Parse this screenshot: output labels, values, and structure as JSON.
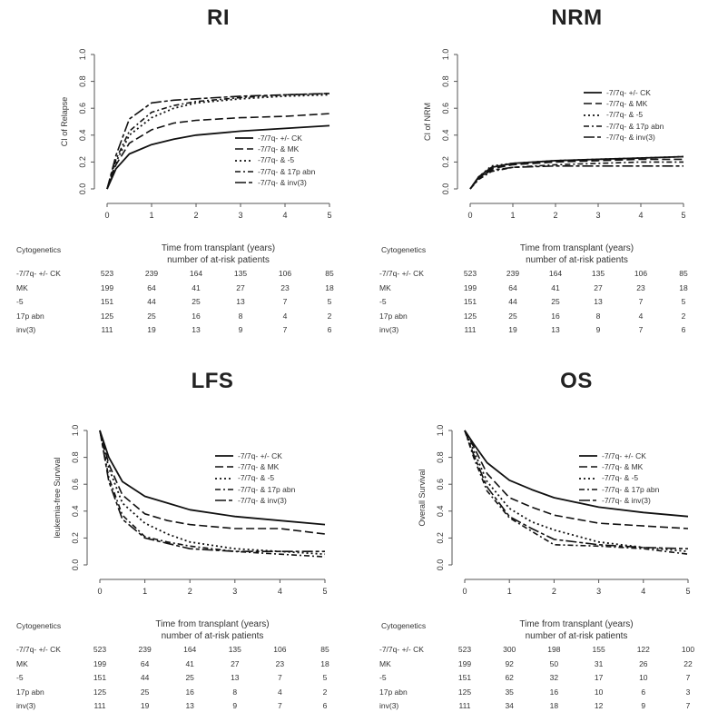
{
  "chart_data": [
    {
      "type": "line",
      "title": "RI",
      "ylabel": "CI of Relapse",
      "xlabel": "Time from transplant (years)",
      "ylim": [
        0,
        1
      ],
      "xlim": [
        0,
        5
      ],
      "yticks": [
        "0.0",
        "0.2",
        "0.4",
        "0.6",
        "0.8",
        "1.0"
      ],
      "xticks": [
        "0",
        "1",
        "2",
        "3",
        "4",
        "5"
      ],
      "legend": [
        "-7/7q- +/- CK",
        "-7/7q- & MK",
        "-7/7q- & -5",
        "-7/7q- & 17p abn",
        "-7/7q- & inv(3)"
      ],
      "legend_position": "bottom-right",
      "series": [
        {
          "name": "-7/7q- +/- CK",
          "dash": "solid",
          "x": [
            0,
            0.2,
            0.5,
            1,
            1.5,
            2,
            3,
            4,
            5
          ],
          "y": [
            0,
            0.15,
            0.26,
            0.33,
            0.37,
            0.4,
            0.43,
            0.45,
            0.47
          ]
        },
        {
          "name": "-7/7q- & MK",
          "dash": "longdash",
          "x": [
            0,
            0.2,
            0.5,
            1,
            1.5,
            2,
            3,
            4,
            5
          ],
          "y": [
            0,
            0.18,
            0.34,
            0.44,
            0.49,
            0.51,
            0.53,
            0.54,
            0.56
          ]
        },
        {
          "name": "-7/7q- & -5",
          "dash": "dotted",
          "x": [
            0,
            0.2,
            0.5,
            1,
            1.5,
            2,
            3,
            4,
            5
          ],
          "y": [
            0,
            0.2,
            0.4,
            0.53,
            0.6,
            0.64,
            0.67,
            0.69,
            0.7
          ]
        },
        {
          "name": "-7/7q- & 17p abn",
          "dash": "dashdot",
          "x": [
            0,
            0.2,
            0.5,
            1,
            1.5,
            2,
            3,
            4,
            5
          ],
          "y": [
            0,
            0.22,
            0.43,
            0.57,
            0.62,
            0.65,
            0.68,
            0.7,
            0.71
          ]
        },
        {
          "name": "-7/7q- & inv(3)",
          "dash": "twodash",
          "x": [
            0,
            0.2,
            0.5,
            1,
            1.5,
            2,
            3,
            4,
            5
          ],
          "y": [
            0,
            0.25,
            0.52,
            0.64,
            0.66,
            0.67,
            0.69,
            0.7,
            0.71
          ]
        }
      ],
      "risk_table": {
        "header_left": "Cytogenetics",
        "header_title": "Time from transplant (years)",
        "header_sub": "number of at-risk patients",
        "rows": [
          {
            "label": "-7/7q- +/- CK",
            "values": [
              "523",
              "239",
              "164",
              "135",
              "106",
              "85"
            ]
          },
          {
            "label": "MK",
            "values": [
              "199",
              "64",
              "41",
              "27",
              "23",
              "18"
            ]
          },
          {
            "label": "-5",
            "values": [
              "151",
              "44",
              "25",
              "13",
              "7",
              "5"
            ]
          },
          {
            "label": "17p abn",
            "values": [
              "125",
              "25",
              "16",
              "8",
              "4",
              "2"
            ]
          },
          {
            "label": "inv(3)",
            "values": [
              "111",
              "19",
              "13",
              "9",
              "7",
              "6"
            ]
          }
        ]
      }
    },
    {
      "type": "line",
      "title": "NRM",
      "ylabel": "CI of NRM",
      "xlabel": "Time from transplant (years)",
      "ylim": [
        0,
        1
      ],
      "xlim": [
        0,
        5
      ],
      "yticks": [
        "0.0",
        "0.2",
        "0.4",
        "0.6",
        "0.8",
        "1.0"
      ],
      "xticks": [
        "0",
        "1",
        "2",
        "3",
        "4",
        "5"
      ],
      "legend": [
        "-7/7q- +/- CK",
        "-7/7q- & MK",
        "-7/7q- & -5",
        "-7/7q- & 17p abn",
        "-7/7q- & inv(3)"
      ],
      "legend_position": "top-right",
      "series": [
        {
          "name": "-7/7q- +/- CK",
          "dash": "solid",
          "x": [
            0,
            0.2,
            0.5,
            1,
            2,
            3,
            4,
            5
          ],
          "y": [
            0,
            0.09,
            0.16,
            0.19,
            0.21,
            0.22,
            0.23,
            0.24
          ]
        },
        {
          "name": "-7/7q- & MK",
          "dash": "longdash",
          "x": [
            0,
            0.2,
            0.5,
            1,
            2,
            3,
            4,
            5
          ],
          "y": [
            0,
            0.08,
            0.15,
            0.18,
            0.2,
            0.21,
            0.22,
            0.22
          ]
        },
        {
          "name": "-7/7q- & -5",
          "dash": "dotted",
          "x": [
            0,
            0.2,
            0.5,
            1,
            2,
            3,
            4,
            5
          ],
          "y": [
            0,
            0.09,
            0.17,
            0.19,
            0.21,
            0.22,
            0.23,
            0.24
          ]
        },
        {
          "name": "-7/7q- & 17p abn",
          "dash": "dashdot",
          "x": [
            0,
            0.2,
            0.5,
            1,
            2,
            3,
            4,
            5
          ],
          "y": [
            0,
            0.07,
            0.13,
            0.16,
            0.18,
            0.19,
            0.2,
            0.2
          ]
        },
        {
          "name": "-7/7q- & inv(3)",
          "dash": "twodash",
          "x": [
            0,
            0.2,
            0.5,
            1,
            2,
            3,
            4,
            5
          ],
          "y": [
            0,
            0.08,
            0.14,
            0.16,
            0.17,
            0.17,
            0.17,
            0.17
          ]
        }
      ],
      "risk_table": {
        "header_left": "Cytogenetics",
        "header_title": "Time from transplant (years)",
        "header_sub": "number of at-risk patients",
        "rows": [
          {
            "label": "-7/7q- +/- CK",
            "values": [
              "523",
              "239",
              "164",
              "135",
              "106",
              "85"
            ]
          },
          {
            "label": "MK",
            "values": [
              "199",
              "64",
              "41",
              "27",
              "23",
              "18"
            ]
          },
          {
            "label": "-5",
            "values": [
              "151",
              "44",
              "25",
              "13",
              "7",
              "5"
            ]
          },
          {
            "label": "17p abn",
            "values": [
              "125",
              "25",
              "16",
              "8",
              "4",
              "2"
            ]
          },
          {
            "label": "inv(3)",
            "values": [
              "111",
              "19",
              "13",
              "9",
              "7",
              "6"
            ]
          }
        ]
      }
    },
    {
      "type": "line",
      "title": "LFS",
      "ylabel": "leukemia-free Survival",
      "xlabel": "Time from transplant (years)",
      "ylim": [
        0,
        1
      ],
      "xlim": [
        0,
        5
      ],
      "yticks": [
        "0.0",
        "0.2",
        "0.4",
        "0.6",
        "0.8",
        "1.0"
      ],
      "xticks": [
        "0",
        "1",
        "2",
        "3",
        "4",
        "5"
      ],
      "legend": [
        "-7/7q- +/- CK",
        "-7/7q- & MK",
        "-7/7q- & -5",
        "-7/7q- & 17p abn",
        "-7/7q- & inv(3)"
      ],
      "legend_position": "top-right",
      "series": [
        {
          "name": "-7/7q- +/- CK",
          "dash": "solid",
          "x": [
            0,
            0.2,
            0.5,
            1,
            1.5,
            2,
            3,
            4,
            5
          ],
          "y": [
            1,
            0.8,
            0.62,
            0.51,
            0.46,
            0.41,
            0.36,
            0.33,
            0.3
          ]
        },
        {
          "name": "-7/7q- & MK",
          "dash": "longdash",
          "x": [
            0,
            0.2,
            0.5,
            1,
            1.5,
            2,
            3,
            4,
            5
          ],
          "y": [
            1,
            0.75,
            0.52,
            0.38,
            0.33,
            0.3,
            0.27,
            0.27,
            0.23
          ]
        },
        {
          "name": "-7/7q- & -5",
          "dash": "dotted",
          "x": [
            0,
            0.2,
            0.5,
            1,
            1.5,
            2,
            3,
            4,
            5
          ],
          "y": [
            1,
            0.72,
            0.46,
            0.31,
            0.23,
            0.17,
            0.12,
            0.1,
            0.08
          ]
        },
        {
          "name": "-7/7q- & 17p abn",
          "dash": "dashdot",
          "x": [
            0,
            0.2,
            0.5,
            1,
            1.5,
            2,
            3,
            4,
            5
          ],
          "y": [
            1,
            0.65,
            0.37,
            0.21,
            0.17,
            0.14,
            0.1,
            0.08,
            0.06
          ]
        },
        {
          "name": "-7/7q- & inv(3)",
          "dash": "twodash",
          "x": [
            0,
            0.2,
            0.5,
            1,
            1.5,
            2,
            3,
            4,
            5
          ],
          "y": [
            1,
            0.62,
            0.34,
            0.2,
            0.16,
            0.12,
            0.1,
            0.1,
            0.1
          ]
        }
      ],
      "risk_table": {
        "header_left": "Cytogenetics",
        "header_title": "Time from transplant (years)",
        "header_sub": "number of at-risk patients",
        "rows": [
          {
            "label": "-7/7q- +/- CK",
            "values": [
              "523",
              "239",
              "164",
              "135",
              "106",
              "85"
            ]
          },
          {
            "label": "MK",
            "values": [
              "199",
              "64",
              "41",
              "27",
              "23",
              "18"
            ]
          },
          {
            "label": "-5",
            "values": [
              "151",
              "44",
              "25",
              "13",
              "7",
              "5"
            ]
          },
          {
            "label": "17p abn",
            "values": [
              "125",
              "25",
              "16",
              "8",
              "4",
              "2"
            ]
          },
          {
            "label": "inv(3)",
            "values": [
              "111",
              "19",
              "13",
              "9",
              "7",
              "6"
            ]
          }
        ]
      }
    },
    {
      "type": "line",
      "title": "OS",
      "ylabel": "Overall Survival",
      "xlabel": "Time from transplant (years)",
      "ylim": [
        0,
        1
      ],
      "xlim": [
        0,
        5
      ],
      "yticks": [
        "0.0",
        "0.2",
        "0.4",
        "0.6",
        "0.8",
        "1.0"
      ],
      "xticks": [
        "0",
        "1",
        "2",
        "3",
        "4",
        "5"
      ],
      "legend": [
        "-7/7q- +/- CK",
        "-7/7q- & MK",
        "-7/7q- & -5",
        "-7/7q- & 17p abn",
        "-7/7q- & inv(3)"
      ],
      "legend_position": "top-right",
      "series": [
        {
          "name": "-7/7q- +/- CK",
          "dash": "solid",
          "x": [
            0,
            0.2,
            0.5,
            1,
            1.5,
            2,
            3,
            4,
            5
          ],
          "y": [
            1,
            0.9,
            0.76,
            0.63,
            0.56,
            0.5,
            0.43,
            0.39,
            0.36
          ]
        },
        {
          "name": "-7/7q- & MK",
          "dash": "longdash",
          "x": [
            0,
            0.2,
            0.5,
            1,
            1.5,
            2,
            3,
            4,
            5
          ],
          "y": [
            1,
            0.88,
            0.68,
            0.5,
            0.43,
            0.37,
            0.31,
            0.29,
            0.27
          ]
        },
        {
          "name": "-7/7q- & -5",
          "dash": "dotted",
          "x": [
            0,
            0.2,
            0.5,
            1,
            1.5,
            2,
            3,
            4,
            5
          ],
          "y": [
            1,
            0.85,
            0.62,
            0.42,
            0.32,
            0.26,
            0.17,
            0.13,
            0.1
          ]
        },
        {
          "name": "-7/7q- & 17p abn",
          "dash": "dashdot",
          "x": [
            0,
            0.2,
            0.5,
            1,
            1.5,
            2,
            3,
            4,
            5
          ],
          "y": [
            1,
            0.8,
            0.55,
            0.35,
            0.25,
            0.15,
            0.14,
            0.12,
            0.08
          ]
        },
        {
          "name": "-7/7q- & inv(3)",
          "dash": "twodash",
          "x": [
            0,
            0.2,
            0.5,
            1,
            1.5,
            2,
            3,
            4,
            5
          ],
          "y": [
            1,
            0.82,
            0.58,
            0.36,
            0.27,
            0.19,
            0.15,
            0.13,
            0.12
          ]
        }
      ],
      "risk_table": {
        "header_left": "Cytogenetics",
        "header_title": "Time from transplant (years)",
        "header_sub": "number of at-risk patients",
        "rows": [
          {
            "label": "-7/7q- +/- CK",
            "values": [
              "523",
              "300",
              "198",
              "155",
              "122",
              "100"
            ]
          },
          {
            "label": "MK",
            "values": [
              "199",
              "92",
              "50",
              "31",
              "26",
              "22"
            ]
          },
          {
            "label": "-5",
            "values": [
              "151",
              "62",
              "32",
              "17",
              "10",
              "7"
            ]
          },
          {
            "label": "17p abn",
            "values": [
              "125",
              "35",
              "16",
              "10",
              "6",
              "3"
            ]
          },
          {
            "label": "inv(3)",
            "values": [
              "111",
              "34",
              "18",
              "12",
              "9",
              "7"
            ]
          }
        ]
      }
    }
  ]
}
